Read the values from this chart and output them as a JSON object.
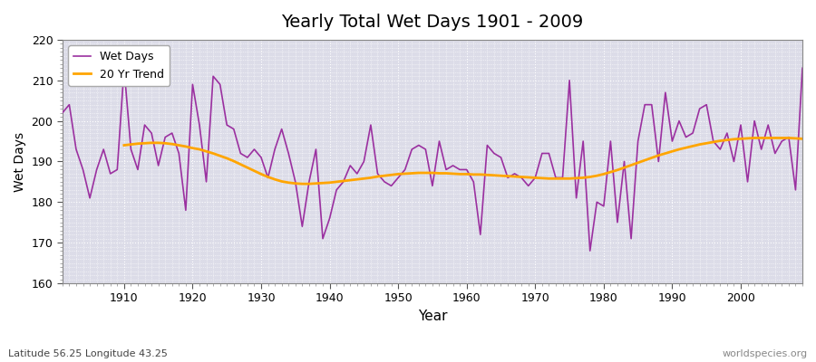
{
  "title": "Yearly Total Wet Days 1901 - 2009",
  "xlabel": "Year",
  "ylabel": "Wet Days",
  "subtitle": "Latitude 56.25 Longitude 43.25",
  "watermark": "worldspecies.org",
  "ylim": [
    160,
    220
  ],
  "yticks": [
    160,
    170,
    180,
    190,
    200,
    210,
    220
  ],
  "wet_days_color": "#9B30A0",
  "trend_color": "#FFA500",
  "plot_bg_color": "#DCDCE8",
  "fig_bg_color": "#FFFFFF",
  "years": [
    1901,
    1902,
    1903,
    1904,
    1905,
    1906,
    1907,
    1908,
    1909,
    1910,
    1911,
    1912,
    1913,
    1914,
    1915,
    1916,
    1917,
    1918,
    1919,
    1920,
    1921,
    1922,
    1923,
    1924,
    1925,
    1926,
    1927,
    1928,
    1929,
    1930,
    1931,
    1932,
    1933,
    1934,
    1935,
    1936,
    1937,
    1938,
    1939,
    1940,
    1941,
    1942,
    1943,
    1944,
    1945,
    1946,
    1947,
    1948,
    1949,
    1950,
    1951,
    1952,
    1953,
    1954,
    1955,
    1956,
    1957,
    1958,
    1959,
    1960,
    1961,
    1962,
    1963,
    1964,
    1965,
    1966,
    1967,
    1968,
    1969,
    1970,
    1971,
    1972,
    1973,
    1974,
    1975,
    1976,
    1977,
    1978,
    1979,
    1980,
    1981,
    1982,
    1983,
    1984,
    1985,
    1986,
    1987,
    1988,
    1989,
    1990,
    1991,
    1992,
    1993,
    1994,
    1995,
    1996,
    1997,
    1998,
    1999,
    2000,
    2001,
    2002,
    2003,
    2004,
    2005,
    2006,
    2007,
    2008,
    2009
  ],
  "wet_days": [
    202,
    204,
    193,
    188,
    181,
    188,
    193,
    187,
    188,
    213,
    193,
    188,
    199,
    197,
    189,
    196,
    197,
    192,
    178,
    209,
    199,
    185,
    211,
    209,
    199,
    198,
    192,
    191,
    193,
    191,
    186,
    193,
    198,
    192,
    185,
    174,
    185,
    193,
    171,
    176,
    183,
    185,
    189,
    187,
    190,
    199,
    187,
    185,
    184,
    186,
    188,
    193,
    194,
    193,
    184,
    195,
    188,
    189,
    188,
    188,
    185,
    172,
    194,
    192,
    191,
    186,
    187,
    186,
    184,
    186,
    192,
    192,
    186,
    186,
    210,
    181,
    195,
    168,
    180,
    179,
    195,
    175,
    190,
    171,
    195,
    204,
    204,
    190,
    207,
    195,
    200,
    196,
    197,
    203,
    204,
    195,
    193,
    197,
    190,
    199,
    185,
    200,
    193,
    199,
    192,
    195,
    196,
    183,
    213
  ],
  "trend_years": [
    1910,
    1911,
    1912,
    1913,
    1914,
    1915,
    1916,
    1917,
    1918,
    1919,
    1920,
    1921,
    1922,
    1923,
    1924,
    1925,
    1926,
    1927,
    1928,
    1929,
    1930,
    1931,
    1932,
    1933,
    1934,
    1935,
    1936,
    1937,
    1938,
    1939,
    1940,
    1941,
    1942,
    1943,
    1944,
    1945,
    1946,
    1947,
    1948,
    1949,
    1950,
    1951,
    1952,
    1953,
    1954,
    1955,
    1956,
    1957,
    1958,
    1959,
    1960,
    1961,
    1962,
    1963,
    1964,
    1965,
    1966,
    1967,
    1968,
    1969,
    1970,
    1971,
    1972,
    1973,
    1974,
    1975,
    1976,
    1977,
    1978,
    1979,
    1980,
    1981,
    1982,
    1983,
    1984,
    1985,
    1986,
    1987,
    1988,
    1989,
    1990,
    1991,
    1992,
    1993,
    1994,
    1995,
    1996,
    1997,
    1998,
    1999,
    2000,
    2001,
    2002,
    2003,
    2004,
    2005,
    2006,
    2007,
    2008,
    2009
  ],
  "trend_values": [
    194.0,
    194.2,
    194.4,
    194.5,
    194.6,
    194.6,
    194.5,
    194.3,
    194.0,
    193.7,
    193.3,
    193.0,
    192.5,
    192.0,
    191.4,
    190.8,
    190.1,
    189.3,
    188.5,
    187.7,
    186.9,
    186.2,
    185.6,
    185.1,
    184.8,
    184.6,
    184.5,
    184.5,
    184.6,
    184.7,
    184.8,
    185.0,
    185.2,
    185.4,
    185.6,
    185.8,
    186.0,
    186.3,
    186.5,
    186.7,
    186.9,
    187.0,
    187.1,
    187.2,
    187.2,
    187.2,
    187.1,
    187.1,
    187.0,
    186.9,
    186.9,
    186.8,
    186.8,
    186.7,
    186.6,
    186.5,
    186.4,
    186.3,
    186.2,
    186.1,
    186.0,
    185.9,
    185.8,
    185.8,
    185.8,
    185.8,
    185.9,
    186.0,
    186.2,
    186.5,
    186.9,
    187.4,
    187.9,
    188.5,
    189.1,
    189.7,
    190.3,
    190.9,
    191.5,
    192.0,
    192.5,
    193.0,
    193.4,
    193.8,
    194.2,
    194.5,
    194.8,
    195.1,
    195.3,
    195.5,
    195.6,
    195.7,
    195.8,
    195.8,
    195.8,
    195.8,
    195.8,
    195.8,
    195.7,
    195.6
  ]
}
